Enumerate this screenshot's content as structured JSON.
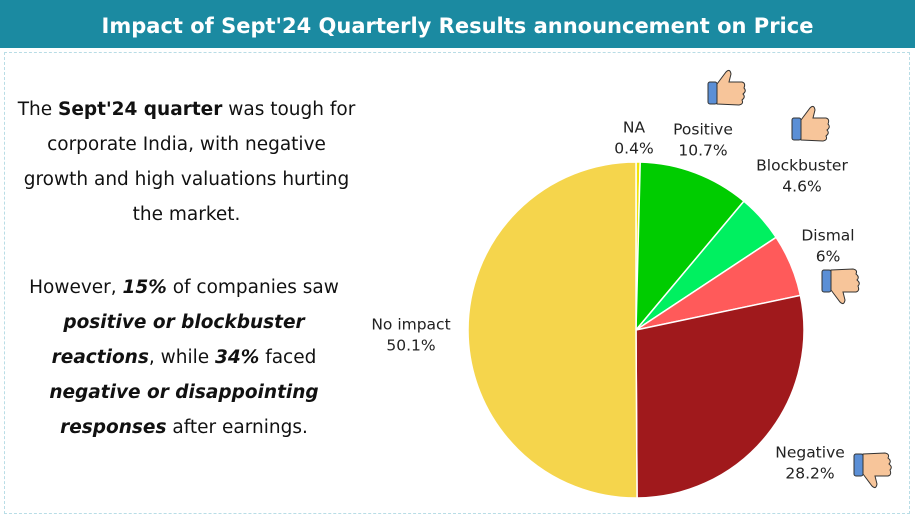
{
  "chart_data": {
    "type": "pie",
    "title": "Impact of Sept'24 Quarterly Results announcement on Price",
    "categories": [
      "NA",
      "Positive",
      "Blockbuster",
      "Dismal",
      "Negative",
      "No impact"
    ],
    "values": [
      0.4,
      10.7,
      4.6,
      6,
      28.2,
      50.1
    ],
    "value_labels": [
      "0.4%",
      "10.7%",
      "4.6%",
      "6%",
      "28.2%",
      "50.1%"
    ],
    "colors": [
      "#f0e40a",
      "#00cc00",
      "#00f060",
      "#ff5a5a",
      "#a0191c",
      "#f5d54c"
    ],
    "description": [
      [
        "The ",
        "Sept'24 quarter",
        " was tough for corporate India, with negative growth and high valuations hurting the market."
      ],
      [
        "However, ",
        "15%",
        " of companies saw ",
        "positive or blockbuster reactions",
        ", while ",
        "34%",
        " faced ",
        "negative or disappointing responses",
        " after earnings."
      ]
    ]
  }
}
